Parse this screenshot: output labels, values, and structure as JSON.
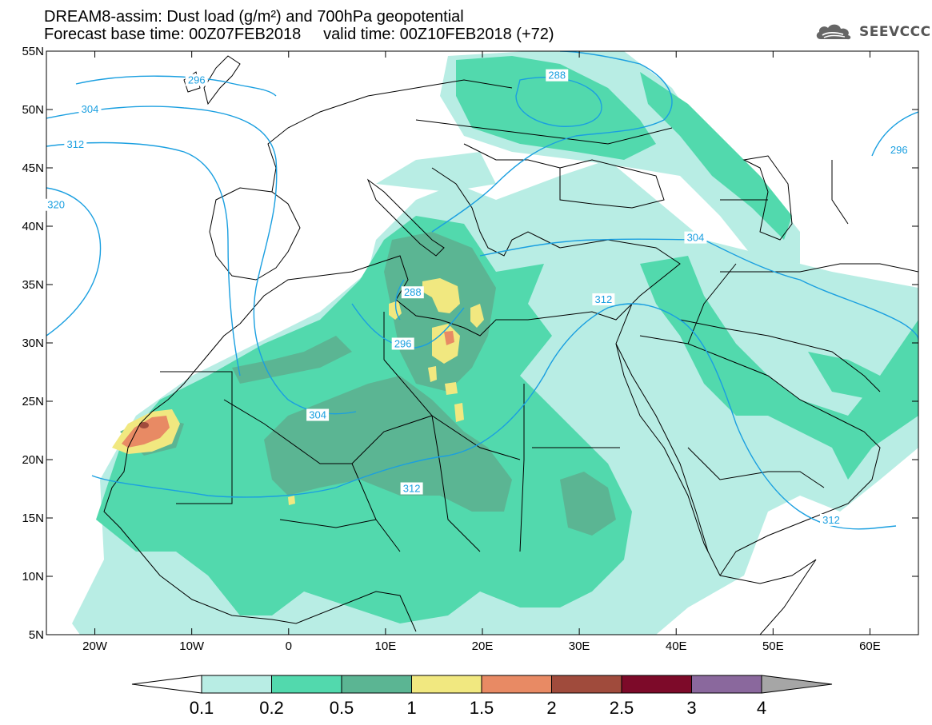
{
  "header": {
    "title_line1": "DREAM8-assim: Dust load (g/m²) and 700hPa geopotential",
    "title_line2": "Forecast base time: 00Z07FEB2018     valid time: 00Z10FEB2018 (+72)"
  },
  "logo": {
    "text": "SEEVCCC",
    "icon": "cloud-logo-icon"
  },
  "map": {
    "lon_range": [
      -25,
      65
    ],
    "lat_range": [
      5,
      55
    ],
    "lon_ticks": [
      {
        "v": -20,
        "label": "20W"
      },
      {
        "v": -10,
        "label": "10W"
      },
      {
        "v": 0,
        "label": "0"
      },
      {
        "v": 10,
        "label": "10E"
      },
      {
        "v": 20,
        "label": "20E"
      },
      {
        "v": 30,
        "label": "30E"
      },
      {
        "v": 40,
        "label": "40E"
      },
      {
        "v": 50,
        "label": "50E"
      },
      {
        "v": 60,
        "label": "60E"
      }
    ],
    "lat_ticks": [
      {
        "v": 55,
        "label": "55N"
      },
      {
        "v": 50,
        "label": "50N"
      },
      {
        "v": 45,
        "label": "45N"
      },
      {
        "v": 40,
        "label": "40N"
      },
      {
        "v": 35,
        "label": "35N"
      },
      {
        "v": 30,
        "label": "30N"
      },
      {
        "v": 25,
        "label": "25N"
      },
      {
        "v": 20,
        "label": "20N"
      },
      {
        "v": 15,
        "label": "15N"
      },
      {
        "v": 10,
        "label": "10N"
      },
      {
        "v": 5,
        "label": "5N"
      }
    ],
    "geopotential_contour_color": "#1a9fe0",
    "contour_labels": [
      {
        "text": "296",
        "lon": -9.5,
        "lat": 52.5
      },
      {
        "text": "304",
        "lon": -20.5,
        "lat": 50.0
      },
      {
        "text": "312",
        "lon": -22.0,
        "lat": 47.0
      },
      {
        "text": "320",
        "lon": -24.0,
        "lat": 41.8
      },
      {
        "text": "288",
        "lon": 27.7,
        "lat": 52.9
      },
      {
        "text": "296",
        "lon": 63.0,
        "lat": 46.5
      },
      {
        "text": "304",
        "lon": 42.0,
        "lat": 39.0
      },
      {
        "text": "312",
        "lon": 32.5,
        "lat": 33.7
      },
      {
        "text": "288",
        "lon": 12.8,
        "lat": 34.3
      },
      {
        "text": "296",
        "lon": 11.8,
        "lat": 29.9
      },
      {
        "text": "304",
        "lon": 3.0,
        "lat": 23.8
      },
      {
        "text": "312",
        "lon": 12.7,
        "lat": 17.5
      },
      {
        "text": "312",
        "lon": 56.0,
        "lat": 14.8
      }
    ]
  },
  "colorbar": {
    "colors": [
      "#b8ede4",
      "#52d9ad",
      "#5bb593",
      "#f1e880",
      "#e88a64",
      "#a04b3c",
      "#7d0a29",
      "#8a689d"
    ],
    "under_color": "#ffffff",
    "over_color": "#a6a6a6",
    "labels": [
      "0.1",
      "0.2",
      "0.5",
      "1",
      "1.5",
      "2",
      "2.5",
      "3",
      "4"
    ]
  }
}
